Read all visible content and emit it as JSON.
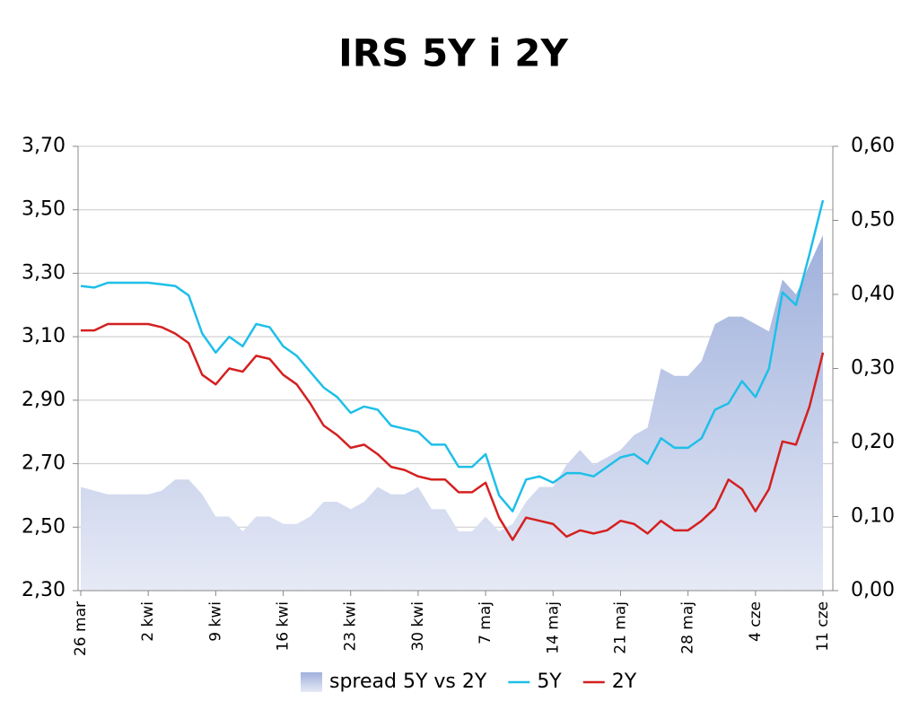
{
  "chart_data": {
    "type": "line",
    "title": "IRS 5Y i 2Y",
    "categories": [
      "26 mar",
      null,
      null,
      null,
      null,
      "2 kwi",
      null,
      null,
      null,
      null,
      "9 kwi",
      null,
      null,
      null,
      null,
      "16 kwi",
      null,
      null,
      null,
      null,
      "23 kwi",
      null,
      null,
      null,
      null,
      "30 kwi",
      null,
      null,
      null,
      null,
      "7 maj",
      null,
      null,
      null,
      null,
      "14 maj",
      null,
      null,
      null,
      null,
      "21 maj",
      null,
      null,
      null,
      null,
      "28 maj",
      null,
      null,
      null,
      null,
      "4 cze",
      null,
      null,
      null,
      null,
      "11 cze"
    ],
    "series": [
      {
        "name": "spread 5Y vs 2Y",
        "kind": "area",
        "axis": "y2",
        "color": "#9fb0dc",
        "values": [
          0.14,
          0.135,
          0.13,
          0.13,
          0.13,
          0.13,
          0.135,
          0.15,
          0.15,
          0.13,
          0.1,
          0.1,
          0.08,
          0.1,
          0.1,
          0.09,
          0.09,
          0.1,
          0.12,
          0.12,
          0.11,
          0.12,
          0.14,
          0.13,
          0.13,
          0.14,
          0.11,
          0.11,
          0.08,
          0.08,
          0.1,
          0.08,
          0.09,
          0.12,
          0.14,
          0.14,
          0.17,
          0.19,
          0.17,
          0.18,
          0.19,
          0.21,
          0.22,
          0.3,
          0.29,
          0.29,
          0.31,
          0.36,
          0.37,
          0.37,
          0.36,
          0.35,
          0.42,
          0.4,
          0.44,
          0.48
        ]
      },
      {
        "name": "5Y",
        "color": "#1ebfe8",
        "values": [
          3.26,
          3.255,
          3.27,
          3.27,
          3.27,
          3.27,
          3.265,
          3.26,
          3.23,
          3.11,
          3.05,
          3.1,
          3.07,
          3.14,
          3.13,
          3.07,
          3.04,
          2.99,
          2.94,
          2.91,
          2.86,
          2.88,
          2.87,
          2.82,
          2.81,
          2.8,
          2.76,
          2.76,
          2.69,
          2.69,
          2.73,
          2.6,
          2.55,
          2.65,
          2.66,
          2.64,
          2.67,
          2.67,
          2.66,
          2.69,
          2.72,
          2.73,
          2.7,
          2.78,
          2.75,
          2.75,
          2.78,
          2.87,
          2.89,
          2.96,
          2.91,
          3.0,
          3.24,
          3.2,
          3.36,
          3.53
        ]
      },
      {
        "name": "2Y",
        "color": "#d42020",
        "values": [
          3.12,
          3.12,
          3.14,
          3.14,
          3.14,
          3.14,
          3.13,
          3.11,
          3.08,
          2.98,
          2.95,
          3.0,
          2.99,
          3.04,
          3.03,
          2.98,
          2.95,
          2.89,
          2.82,
          2.79,
          2.75,
          2.76,
          2.73,
          2.69,
          2.68,
          2.66,
          2.65,
          2.65,
          2.61,
          2.61,
          2.64,
          2.53,
          2.46,
          2.53,
          2.52,
          2.51,
          2.47,
          2.49,
          2.48,
          2.49,
          2.52,
          2.51,
          2.48,
          2.52,
          2.49,
          2.49,
          2.52,
          2.56,
          2.65,
          2.62,
          2.55,
          2.62,
          2.77,
          2.76,
          2.88,
          3.05
        ]
      }
    ],
    "ylim": [
      2.3,
      3.7
    ],
    "yticks": [
      {
        "value": 2.3,
        "label": "2,30"
      },
      {
        "value": 2.5,
        "label": "2,50"
      },
      {
        "value": 2.7,
        "label": "2,70"
      },
      {
        "value": 2.9,
        "label": "2,90"
      },
      {
        "value": 3.1,
        "label": "3,10"
      },
      {
        "value": 3.3,
        "label": "3,30"
      },
      {
        "value": 3.5,
        "label": "3,50"
      },
      {
        "value": 3.7,
        "label": "3,70"
      }
    ],
    "y2lim": [
      0,
      0.6
    ],
    "y2ticks": [
      {
        "value": 0,
        "label": "0,00"
      },
      {
        "value": 0.1,
        "label": "0,10"
      },
      {
        "value": 0.2,
        "label": "0,20"
      },
      {
        "value": 0.3,
        "label": "0,30"
      },
      {
        "value": 0.4,
        "label": "0,40"
      },
      {
        "value": 0.5,
        "label": "0,50"
      },
      {
        "value": 0.6,
        "label": "0,60"
      }
    ],
    "grid": true,
    "legend": "bottom"
  }
}
